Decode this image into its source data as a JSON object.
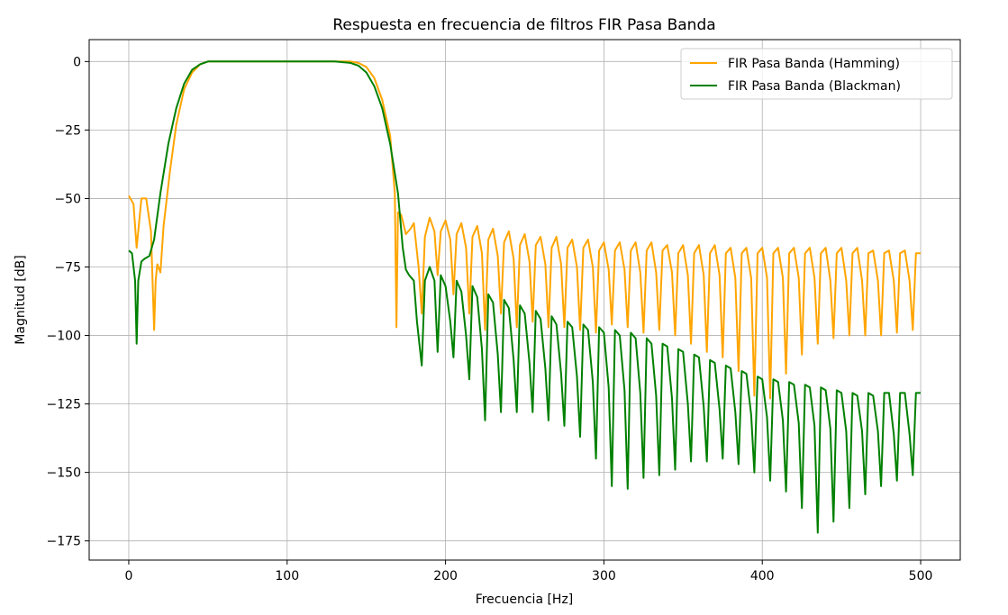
{
  "chart_data": {
    "type": "line",
    "title": "Respuesta en frecuencia de filtros FIR Pasa Banda",
    "xlabel": "Frecuencia [Hz]",
    "ylabel": "Magnitud [dB]",
    "xlim": [
      -25,
      525
    ],
    "ylim": [
      -182,
      8
    ],
    "xticks": [
      0,
      100,
      200,
      300,
      400,
      500
    ],
    "yticks": [
      0,
      -25,
      -50,
      -75,
      -100,
      -125,
      -150,
      -175
    ],
    "xtick_labels": [
      "0",
      "100",
      "200",
      "300",
      "400",
      "500"
    ],
    "ytick_labels": [
      "0",
      "−25",
      "−50",
      "−75",
      "−100",
      "−125",
      "−150",
      "−175"
    ],
    "grid": true,
    "legend_position": "top-right",
    "series": [
      {
        "name": "FIR Pasa Banda (Hamming)",
        "color": "#ffa500",
        "x": [
          0,
          3,
          5,
          8,
          11,
          14,
          16,
          17,
          18,
          20,
          22,
          26,
          30,
          35,
          40,
          45,
          50,
          55,
          60,
          70,
          80,
          100,
          120,
          130,
          140,
          145,
          150,
          155,
          160,
          165,
          168,
          169,
          170,
          172,
          175,
          178,
          180,
          183,
          185,
          187,
          190,
          193,
          195,
          197,
          200,
          203,
          205,
          207,
          210,
          213,
          215,
          217,
          220,
          223,
          225,
          227,
          230,
          233,
          235,
          237,
          240,
          243,
          245,
          247,
          250,
          253,
          255,
          257,
          260,
          263,
          265,
          267,
          270,
          273,
          275,
          277,
          280,
          283,
          285,
          287,
          290,
          293,
          295,
          297,
          300,
          303,
          305,
          307,
          310,
          313,
          315,
          317,
          320,
          323,
          325,
          327,
          330,
          333,
          335,
          337,
          340,
          343,
          345,
          347,
          350,
          353,
          355,
          357,
          360,
          363,
          365,
          367,
          370,
          373,
          375,
          377,
          380,
          383,
          385,
          387,
          390,
          393,
          395,
          397,
          400,
          403,
          405,
          407,
          410,
          413,
          415,
          417,
          420,
          423,
          425,
          427,
          430,
          433,
          435,
          437,
          440,
          443,
          445,
          447,
          450,
          453,
          455,
          457,
          460,
          463,
          465,
          467,
          470,
          473,
          475,
          477,
          480,
          483,
          485,
          487,
          490,
          493,
          495,
          497,
          500
        ],
        "values": [
          -49,
          -52,
          -68,
          -50,
          -50,
          -62,
          -98,
          -80,
          -74,
          -77,
          -60,
          -40,
          -23,
          -10,
          -4,
          -1,
          0,
          0,
          0,
          0,
          0,
          0,
          0,
          0,
          0,
          -0.5,
          -2,
          -6,
          -14,
          -27,
          -48,
          -97,
          -55,
          -56,
          -63,
          -61,
          -59,
          -75,
          -92,
          -64,
          -57,
          -62,
          -78,
          -62,
          -58,
          -65,
          -85,
          -63,
          -59,
          -68,
          -92,
          -64,
          -60,
          -70,
          -98,
          -65,
          -61,
          -71,
          -92,
          -66,
          -62,
          -72,
          -97,
          -67,
          -63,
          -73,
          -95,
          -67,
          -64,
          -74,
          -97,
          -68,
          -64,
          -74,
          -97,
          -68,
          -65,
          -75,
          -98,
          -68,
          -65,
          -75,
          -99,
          -69,
          -66,
          -76,
          -96,
          -69,
          -66,
          -76,
          -97,
          -69,
          -66,
          -77,
          -99,
          -69,
          -66,
          -77,
          -98,
          -69,
          -67,
          -77,
          -100,
          -70,
          -67,
          -78,
          -103,
          -70,
          -67,
          -78,
          -106,
          -70,
          -67,
          -78,
          -108,
          -70,
          -68,
          -79,
          -113,
          -70,
          -68,
          -79,
          -122,
          -70,
          -68,
          -79,
          -123,
          -70,
          -68,
          -79,
          -114,
          -70,
          -68,
          -79,
          -107,
          -70,
          -68,
          -79,
          -103,
          -70,
          -68,
          -80,
          -101,
          -70,
          -68,
          -80,
          -100,
          -70,
          -68,
          -80,
          -100,
          -70,
          -69,
          -80,
          -100,
          -70,
          -69,
          -80,
          -99,
          -70,
          -69,
          -80,
          -98,
          -70,
          -70
        ]
      },
      {
        "name": "FIR Pasa Banda (Blackman)",
        "color": "#008000",
        "x": [
          0,
          2,
          4,
          5,
          6,
          8,
          10,
          13,
          16,
          20,
          25,
          30,
          35,
          40,
          45,
          50,
          55,
          60,
          70,
          80,
          100,
          120,
          130,
          140,
          145,
          150,
          155,
          160,
          165,
          170,
          173,
          175,
          177,
          180,
          182,
          185,
          187,
          190,
          193,
          195,
          197,
          200,
          203,
          205,
          207,
          210,
          213,
          215,
          217,
          220,
          223,
          225,
          227,
          230,
          233,
          235,
          237,
          240,
          243,
          245,
          247,
          250,
          253,
          255,
          257,
          260,
          263,
          265,
          267,
          270,
          273,
          275,
          277,
          280,
          283,
          285,
          287,
          290,
          293,
          295,
          297,
          300,
          303,
          305,
          307,
          310,
          313,
          315,
          317,
          320,
          323,
          325,
          327,
          330,
          333,
          335,
          337,
          340,
          343,
          345,
          347,
          350,
          353,
          355,
          357,
          360,
          363,
          365,
          367,
          370,
          373,
          375,
          377,
          380,
          383,
          385,
          387,
          390,
          393,
          395,
          397,
          400,
          403,
          405,
          407,
          410,
          413,
          415,
          417,
          420,
          423,
          425,
          427,
          430,
          433,
          435,
          437,
          440,
          443,
          445,
          447,
          450,
          453,
          455,
          457,
          460,
          463,
          465,
          467,
          470,
          473,
          475,
          477,
          480,
          483,
          485,
          487,
          490,
          493,
          495,
          497,
          500
        ],
        "values": [
          -69,
          -70,
          -80,
          -103,
          -80,
          -73,
          -72,
          -71,
          -65,
          -48,
          -30,
          -17,
          -8,
          -3,
          -1,
          0,
          0,
          0,
          0,
          0,
          0,
          0,
          0,
          -0.5,
          -1.5,
          -4,
          -9,
          -17,
          -30,
          -48,
          -68,
          -76,
          -78,
          -80,
          -95,
          -111,
          -80,
          -75,
          -80,
          -106,
          -78,
          -82,
          -95,
          -108,
          -80,
          -84,
          -100,
          -116,
          -82,
          -86,
          -105,
          -131,
          -85,
          -88,
          -107,
          -128,
          -87,
          -90,
          -109,
          -128,
          -89,
          -92,
          -110,
          -128,
          -91,
          -94,
          -112,
          -131,
          -93,
          -96,
          -114,
          -133,
          -95,
          -97,
          -115,
          -137,
          -96,
          -98,
          -117,
          -145,
          -97,
          -99,
          -119,
          -155,
          -98,
          -100,
          -120,
          -156,
          -99,
          -101,
          -121,
          -152,
          -101,
          -103,
          -122,
          -151,
          -103,
          -104,
          -123,
          -149,
          -105,
          -106,
          -125,
          -146,
          -107,
          -108,
          -126,
          -146,
          -109,
          -110,
          -127,
          -145,
          -111,
          -112,
          -128,
          -147,
          -113,
          -114,
          -129,
          -150,
          -115,
          -116,
          -130,
          -153,
          -116,
          -117,
          -131,
          -157,
          -117,
          -118,
          -132,
          -163,
          -118,
          -119,
          -133,
          -172,
          -119,
          -120,
          -134,
          -168,
          -120,
          -121,
          -135,
          -163,
          -121,
          -122,
          -135,
          -158,
          -121,
          -122,
          -135,
          -155,
          -121,
          -121,
          -136,
          -153,
          -121,
          -121,
          -136,
          -151,
          -121,
          -121
        ]
      }
    ]
  }
}
